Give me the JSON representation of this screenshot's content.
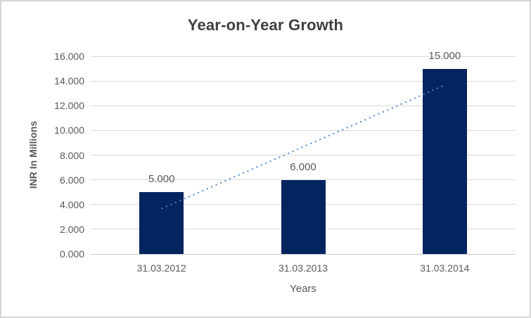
{
  "chart_data": {
    "type": "bar",
    "title": "Year-on-Year Growth",
    "categories": [
      "31.03.2012",
      "31.03.2013",
      "31.03.2014"
    ],
    "values": [
      5,
      6,
      15
    ],
    "data_labels": [
      "5.000",
      "6.000",
      "15.000"
    ],
    "xlabel": "Years",
    "ylabel": "INR In Millions",
    "ylim": [
      0,
      16
    ],
    "ytick_step": 2,
    "ytick_labels": [
      "0.000",
      "2.000",
      "4.000",
      "6.000",
      "8.000",
      "10.000",
      "12.000",
      "14.000",
      "16.000"
    ],
    "grid": true,
    "legend": "none",
    "bar_color": "#03245F",
    "trendline": {
      "type": "linear",
      "style": "dotted",
      "color": "#4E86C9",
      "values": [
        3.667,
        8.667,
        13.667
      ]
    },
    "colors": {
      "gridline": "#D9D9D9",
      "axis_line": "#C8C8C8",
      "tick_text": "#595959",
      "title_text": "#404040",
      "border": "#D6D6D6",
      "background": "#FFFFFF"
    }
  }
}
